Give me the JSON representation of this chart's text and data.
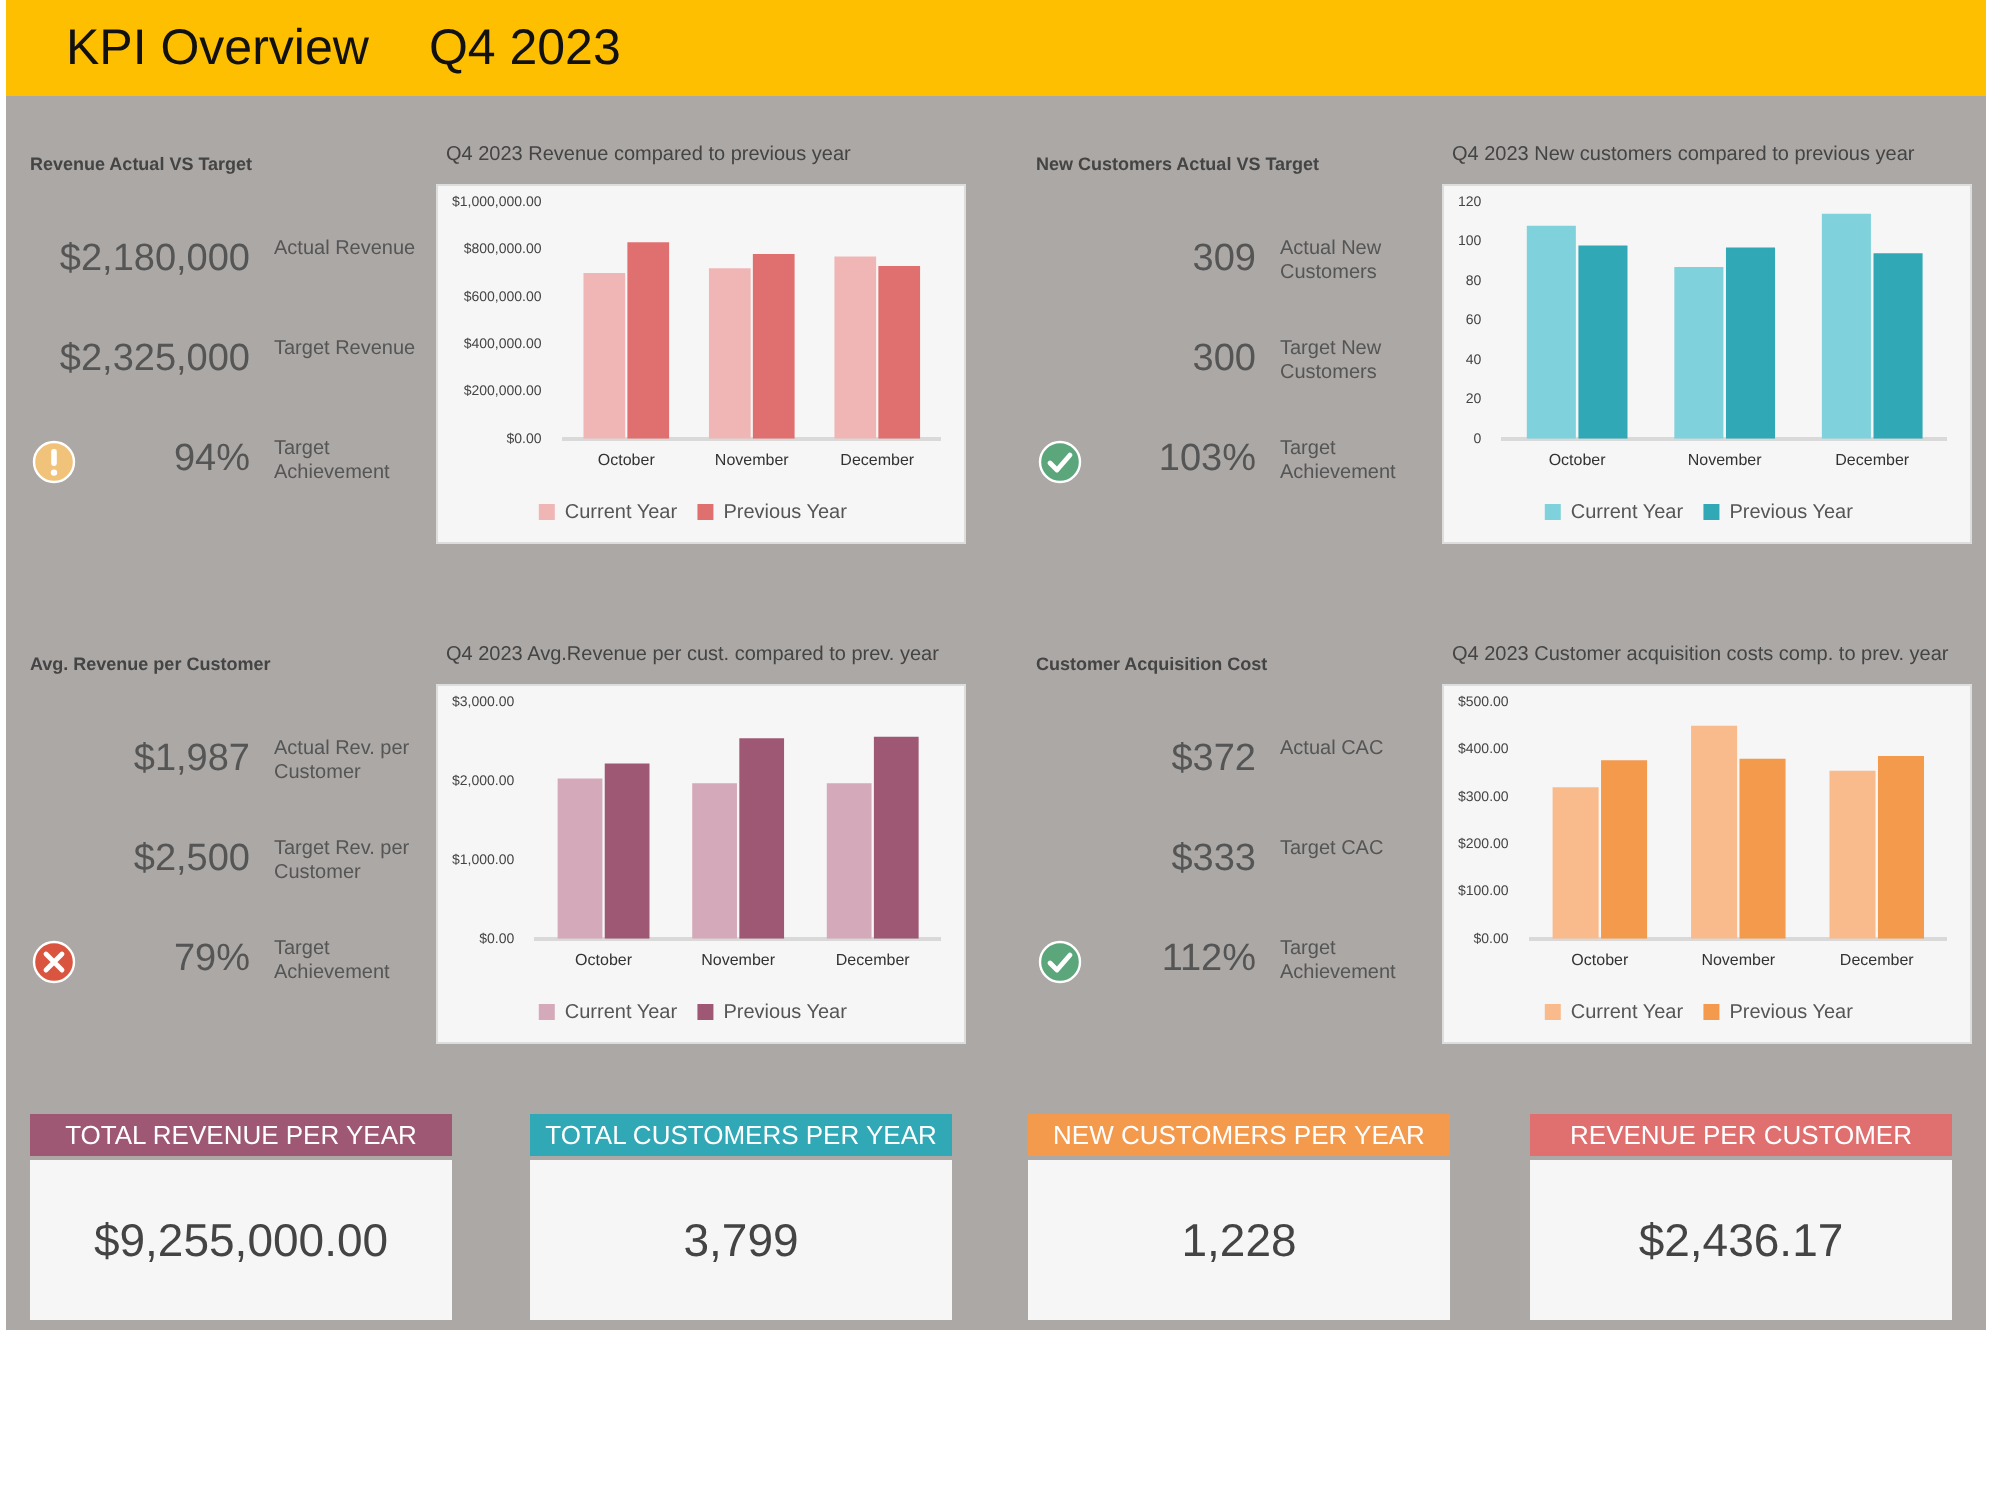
{
  "chart_data": [
    {
      "type": "other",
      "title": "KPI Overview",
      "subtitle": "Q4 2023"
    },
    {
      "type": "other",
      "title": "Revenue Actual VS Target",
      "annotations": [
        "$2,180,000",
        "Actual Revenue",
        "$2,325,000",
        "Target Revenue",
        "94%",
        "Target Achievement"
      ]
    },
    {
      "type": "bar",
      "title": "Q4 2023  Revenue compared to previous year",
      "categories": [
        "October",
        "November",
        "December"
      ],
      "series": [
        {
          "name": "Current Year",
          "color": "#f0b6b6",
          "values": [
            700000,
            720000,
            770000
          ]
        },
        {
          "name": "Previous Year",
          "color": "#e07070",
          "values": [
            830000,
            780000,
            730000
          ]
        }
      ],
      "ylim": [
        0,
        1000000
      ],
      "yticks": [
        {
          "value": 0,
          "label": "$0.00"
        },
        {
          "value": 200000,
          "label": "$200,000.00"
        },
        {
          "value": 400000,
          "label": "$400,000.00"
        },
        {
          "value": 600000,
          "label": "$600,000.00"
        },
        {
          "value": 800000,
          "label": "$800,000.00"
        },
        {
          "value": 1000000,
          "label": "$1,000,000.00"
        }
      ],
      "grid": false,
      "legend": "bottom"
    },
    {
      "type": "other",
      "title": "New Customers Actual VS Target",
      "annotations": [
        "309",
        "Actual New Customers",
        "300",
        "Target New Customers",
        "103%",
        "Target Achievement"
      ]
    },
    {
      "type": "bar",
      "title": "Q4 2023  New customers compared to previous year",
      "categories": [
        "October",
        "November",
        "December"
      ],
      "series": [
        {
          "name": "Current Year",
          "color": "#7fd1dc",
          "values": [
            108,
            87,
            114
          ]
        },
        {
          "name": "Previous Year",
          "color": "#31a8b5",
          "values": [
            98,
            97,
            94
          ]
        }
      ],
      "ylim": [
        0,
        120
      ],
      "yticks": [
        0,
        20,
        40,
        60,
        80,
        100,
        120
      ],
      "grid": false,
      "legend": "bottom"
    },
    {
      "type": "other",
      "title": "Avg. Revenue per Customer",
      "annotations": [
        "$1,987",
        "Actual Rev. per Customer",
        "$2,500",
        "Target Rev. per Customer",
        "79%",
        "Target Achievement"
      ]
    },
    {
      "type": "bar",
      "title": "Q4 2023  Avg.Revenue per cust. compared to prev. year",
      "categories": [
        "October",
        "November",
        "December"
      ],
      "series": [
        {
          "name": "Current Year",
          "color": "#d4a9b9",
          "values": [
            2030,
            1970,
            1970
          ]
        },
        {
          "name": "Previous Year",
          "color": "#9e5874",
          "values": [
            2220,
            2540,
            2560
          ]
        }
      ],
      "ylim": [
        0,
        3000
      ],
      "yticks": [
        {
          "value": 0,
          "label": "$0.00"
        },
        {
          "value": 1000,
          "label": "$1,000.00"
        },
        {
          "value": 2000,
          "label": "$2,000.00"
        },
        {
          "value": 3000,
          "label": "$3,000.00"
        }
      ],
      "grid": false,
      "legend": "bottom"
    },
    {
      "type": "other",
      "title": "Customer Acquisition Cost",
      "annotations": [
        "$372",
        "Actual CAC",
        "$333",
        "Target CAC",
        "112%",
        "Target Achievement"
      ]
    },
    {
      "type": "bar",
      "title": "Q4 2023  Customer acquisition costs comp. to prev. year",
      "categories": [
        "October",
        "November",
        "December"
      ],
      "series": [
        {
          "name": "Current Year",
          "color": "#f9bb8c",
          "values": [
            320,
            450,
            355
          ]
        },
        {
          "name": "Previous Year",
          "color": "#f39a4d",
          "values": [
            377,
            380,
            386
          ]
        }
      ],
      "ylim": [
        0,
        500
      ],
      "yticks": [
        {
          "value": 0,
          "label": "$0.00"
        },
        {
          "value": 100,
          "label": "$100.00"
        },
        {
          "value": 200,
          "label": "$200.00"
        },
        {
          "value": 300,
          "label": "$300.00"
        },
        {
          "value": 400,
          "label": "$400.00"
        },
        {
          "value": 500,
          "label": "$500.00"
        }
      ],
      "grid": false,
      "legend": "bottom"
    },
    {
      "type": "other",
      "title": "TOTAL REVENUE PER YEAR",
      "annotations": [
        "$9,255,000.00"
      ]
    },
    {
      "type": "other",
      "title": "TOTAL CUSTOMERS PER YEAR",
      "annotations": [
        "3,799"
      ]
    },
    {
      "type": "other",
      "title": "NEW CUSTOMERS PER YEAR",
      "annotations": [
        "1,228"
      ]
    },
    {
      "type": "other",
      "title": "REVENUE PER CUSTOMER",
      "annotations": [
        "$2,436.17"
      ]
    }
  ]
}
